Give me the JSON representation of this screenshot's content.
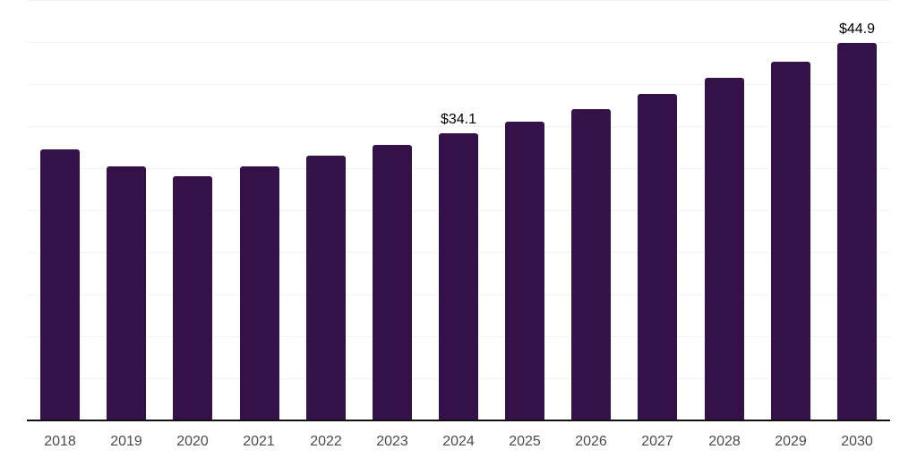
{
  "colors": {
    "background": "#ffffff",
    "bar": "#35114a",
    "grid": "#f3f3f3",
    "axis": "#111111",
    "tick_label": "#4a4a4a",
    "data_label": "#000000"
  },
  "chart_data": {
    "type": "bar",
    "title": "",
    "xlabel": "",
    "ylabel": "",
    "categories": [
      "2018",
      "2019",
      "2020",
      "2021",
      "2022",
      "2023",
      "2024",
      "2025",
      "2026",
      "2027",
      "2028",
      "2029",
      "2030"
    ],
    "values": [
      32.2,
      30.2,
      29.0,
      30.2,
      31.5,
      32.8,
      34.1,
      35.5,
      37.0,
      38.8,
      40.7,
      42.7,
      44.9
    ],
    "data_labels": [
      {
        "category": "2024",
        "text": "$34.1"
      },
      {
        "category": "2030",
        "text": "$44.9"
      }
    ],
    "ylim": [
      0,
      50
    ],
    "grid_step": 5,
    "grid": true,
    "legend": false,
    "y_tick_labels_visible": false,
    "currency_prefix": "$"
  }
}
